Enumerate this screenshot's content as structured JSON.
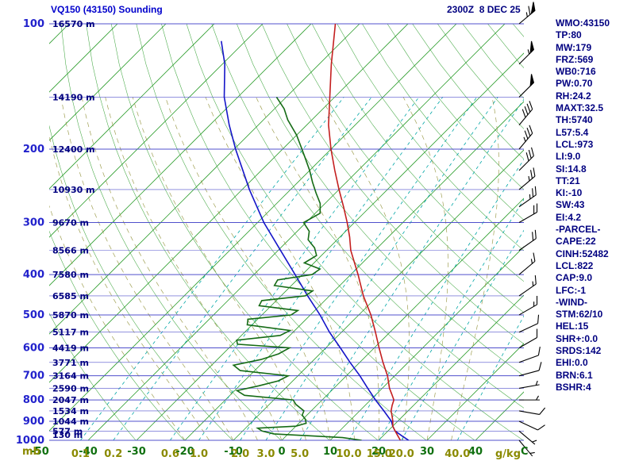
{
  "header": {
    "title": "VQ150 (43150) Sounding",
    "datetime": "2300Z  8 DEC 25"
  },
  "axes": {
    "pressure_unit": "mb",
    "temp_unit": "C",
    "mixing_unit": "g/kg",
    "pressure_ticks": [
      100,
      200,
      300,
      400,
      500,
      600,
      700,
      800,
      900,
      1000
    ],
    "temp_ticks": [
      -50,
      -40,
      -30,
      -20,
      -10,
      0,
      10,
      20,
      30,
      40
    ],
    "mixing_ratio_ticks": [
      0.1,
      0.2,
      0.6,
      1.0,
      2.0,
      3.0,
      5.0,
      10.0,
      15.0,
      20.0,
      40.0
    ],
    "height_labels": [
      {
        "p": 100,
        "label": "16570 m"
      },
      {
        "p": 150,
        "label": "14190 m"
      },
      {
        "p": 200,
        "label": "12400 m"
      },
      {
        "p": 250,
        "label": "10930 m"
      },
      {
        "p": 300,
        "label": "9670 m"
      },
      {
        "p": 350,
        "label": "8566 m"
      },
      {
        "p": 400,
        "label": "7580 m"
      },
      {
        "p": 450,
        "label": "6585 m"
      },
      {
        "p": 500,
        "label": "5870 m"
      },
      {
        "p": 550,
        "label": "5117 m"
      },
      {
        "p": 600,
        "label": "4419 m"
      },
      {
        "p": 650,
        "label": "3771 m"
      },
      {
        "p": 700,
        "label": "3164 m"
      },
      {
        "p": 750,
        "label": "2590 m"
      },
      {
        "p": 800,
        "label": "2047 m"
      },
      {
        "p": 850,
        "label": "1534 m"
      },
      {
        "p": 900,
        "label": "1044 m"
      },
      {
        "p": 950,
        "label": "577 m"
      },
      {
        "p": 1000,
        "label": "130 m"
      }
    ]
  },
  "stats_panel": [
    "WMO:43150",
    "TP:80",
    "MW:179",
    "FRZ:569",
    "WB0:716",
    "PW:0.70",
    "RH:24.2",
    "MAXT:32.5",
    "TH:5740",
    "L57:5.4",
    "LCL:973",
    "LI:9.0",
    "SI:14.8",
    "TT:21",
    "KI:-10",
    "SW:43",
    "EI:4.2",
    "-PARCEL-",
    "CAPE:22",
    "CINH:52482",
    "LCL:822",
    "CAP:9.0",
    "LFC:-1",
    "-WIND-",
    "STM:62/10",
    "HEL:15",
    "SHR+:0.0",
    "SRDS:142",
    "EHI:0.0",
    "BRN:6.1",
    "BSHR:4"
  ],
  "chart_data": {
    "type": "skewt-log-p",
    "title": "VQ150 (43150) Sounding",
    "pressure_range_mb": [
      100,
      1000
    ],
    "temp_range_at_surface_c": [
      -50,
      40
    ],
    "grid": {
      "isotherm_step_c": 10,
      "dry_adiabat_theta_k": [
        243,
        473,
        10
      ],
      "moist_adiabats_tw": [
        -20,
        -15,
        -10,
        -5,
        0,
        5,
        10,
        15,
        20,
        25,
        30,
        35
      ],
      "mixing_ratio_lines": [
        0.1,
        0.2,
        0.6,
        1.0,
        2.0,
        3.0,
        5.0,
        10.0,
        15.0,
        20.0,
        40.0
      ]
    },
    "colors": {
      "temperature": "#c41f1f",
      "dewpoint": "#156b15",
      "parcel": "#1515c8",
      "isotherm": "#2f9e2f",
      "pressure_line": "#5050cc",
      "mixing_ratio": "#00a6a6",
      "moist_adiabat": "#8f8f35",
      "barb": "#000000",
      "pressure_label": "#2222cc",
      "height_label": "#000080",
      "temp_label": "#107010",
      "mixing_label": "#8a8a00"
    },
    "temperature_profile": [
      [
        1000,
        24.5
      ],
      [
        975,
        23
      ],
      [
        950,
        21.5
      ],
      [
        925,
        20
      ],
      [
        900,
        19
      ],
      [
        875,
        17.8
      ],
      [
        850,
        16.5
      ],
      [
        825,
        15.6
      ],
      [
        800,
        14.8
      ],
      [
        775,
        13.2
      ],
      [
        750,
        11.5
      ],
      [
        700,
        8.5
      ],
      [
        650,
        4.8
      ],
      [
        600,
        1
      ],
      [
        550,
        -3
      ],
      [
        500,
        -7.5
      ],
      [
        450,
        -13
      ],
      [
        400,
        -18.5
      ],
      [
        350,
        -25
      ],
      [
        325,
        -28
      ],
      [
        300,
        -31.5
      ],
      [
        275,
        -35.5
      ],
      [
        250,
        -40
      ],
      [
        225,
        -44.8
      ],
      [
        200,
        -50
      ],
      [
        175,
        -55.5
      ],
      [
        150,
        -61
      ],
      [
        125,
        -67.5
      ],
      [
        100,
        -75
      ]
    ],
    "dewpoint_profile": [
      [
        1000,
        16.5
      ],
      [
        985,
        12
      ],
      [
        965,
        -3
      ],
      [
        950,
        -6
      ],
      [
        935,
        -7.5
      ],
      [
        925,
        0
      ],
      [
        910,
        1.5
      ],
      [
        890,
        0.5
      ],
      [
        870,
        -1
      ],
      [
        850,
        -1.5
      ],
      [
        820,
        -4.5
      ],
      [
        800,
        -6
      ],
      [
        780,
        -17
      ],
      [
        760,
        -19.5
      ],
      [
        740,
        -16
      ],
      [
        720,
        -13
      ],
      [
        700,
        -12
      ],
      [
        680,
        -23
      ],
      [
        660,
        -25.5
      ],
      [
        640,
        -21
      ],
      [
        620,
        -18.5
      ],
      [
        600,
        -17.5
      ],
      [
        588,
        -29
      ],
      [
        575,
        -30
      ],
      [
        560,
        -22
      ],
      [
        545,
        -21
      ],
      [
        528,
        -31
      ],
      [
        512,
        -32
      ],
      [
        500,
        -24
      ],
      [
        488,
        -23.5
      ],
      [
        475,
        -32.5
      ],
      [
        462,
        -33
      ],
      [
        450,
        -25
      ],
      [
        438,
        -24.5
      ],
      [
        425,
        -33.5
      ],
      [
        412,
        -34
      ],
      [
        400,
        -28
      ],
      [
        388,
        -27.5
      ],
      [
        375,
        -32
      ],
      [
        360,
        -31
      ],
      [
        345,
        -33
      ],
      [
        330,
        -36
      ],
      [
        315,
        -37.5
      ],
      [
        300,
        -40.5
      ],
      [
        285,
        -39
      ],
      [
        270,
        -41
      ],
      [
        255,
        -44
      ],
      [
        240,
        -47
      ],
      [
        225,
        -50
      ],
      [
        210,
        -53.5
      ],
      [
        200,
        -56
      ],
      [
        185,
        -60
      ],
      [
        170,
        -65
      ],
      [
        160,
        -68
      ],
      [
        150,
        -72
      ]
    ],
    "parcel_profile": [
      [
        1000,
        26.2
      ],
      [
        975,
        23.8
      ],
      [
        950,
        21.5
      ],
      [
        925,
        20
      ],
      [
        900,
        18.7
      ],
      [
        850,
        15
      ],
      [
        800,
        11
      ],
      [
        750,
        7
      ],
      [
        700,
        2.8
      ],
      [
        650,
        -2
      ],
      [
        600,
        -7
      ],
      [
        550,
        -12.5
      ],
      [
        500,
        -18
      ],
      [
        450,
        -24.5
      ],
      [
        400,
        -31.5
      ],
      [
        350,
        -39.5
      ],
      [
        300,
        -48.7
      ],
      [
        250,
        -58.5
      ],
      [
        200,
        -69.7
      ],
      [
        175,
        -76
      ],
      [
        150,
        -82.8
      ],
      [
        125,
        -89.5
      ],
      [
        110,
        -95
      ]
    ],
    "wind_barbs": [
      {
        "p": 100,
        "spd": 65,
        "dir": 50
      },
      {
        "p": 125,
        "spd": 55,
        "dir": 45
      },
      {
        "p": 150,
        "spd": 50,
        "dir": 45
      },
      {
        "p": 175,
        "spd": 40,
        "dir": 40
      },
      {
        "p": 200,
        "spd": 35,
        "dir": 40
      },
      {
        "p": 225,
        "spd": 30,
        "dir": 45
      },
      {
        "p": 250,
        "spd": 25,
        "dir": 50
      },
      {
        "p": 275,
        "spd": 25,
        "dir": 55
      },
      {
        "p": 300,
        "spd": 20,
        "dir": 60
      },
      {
        "p": 350,
        "spd": 20,
        "dir": 55
      },
      {
        "p": 400,
        "spd": 15,
        "dir": 50
      },
      {
        "p": 450,
        "spd": 15,
        "dir": 55
      },
      {
        "p": 500,
        "spd": 15,
        "dir": 60
      },
      {
        "p": 550,
        "spd": 10,
        "dir": 65
      },
      {
        "p": 600,
        "spd": 10,
        "dir": 60
      },
      {
        "p": 650,
        "spd": 10,
        "dir": 70
      },
      {
        "p": 700,
        "spd": 10,
        "dir": 75
      },
      {
        "p": 750,
        "spd": 5,
        "dir": 80
      },
      {
        "p": 800,
        "spd": 5,
        "dir": 90
      },
      {
        "p": 850,
        "spd": 10,
        "dir": 100
      },
      {
        "p": 900,
        "spd": 10,
        "dir": 115
      },
      {
        "p": 950,
        "spd": 5,
        "dir": 130
      },
      {
        "p": 1000,
        "spd": 5,
        "dir": 140
      }
    ]
  }
}
